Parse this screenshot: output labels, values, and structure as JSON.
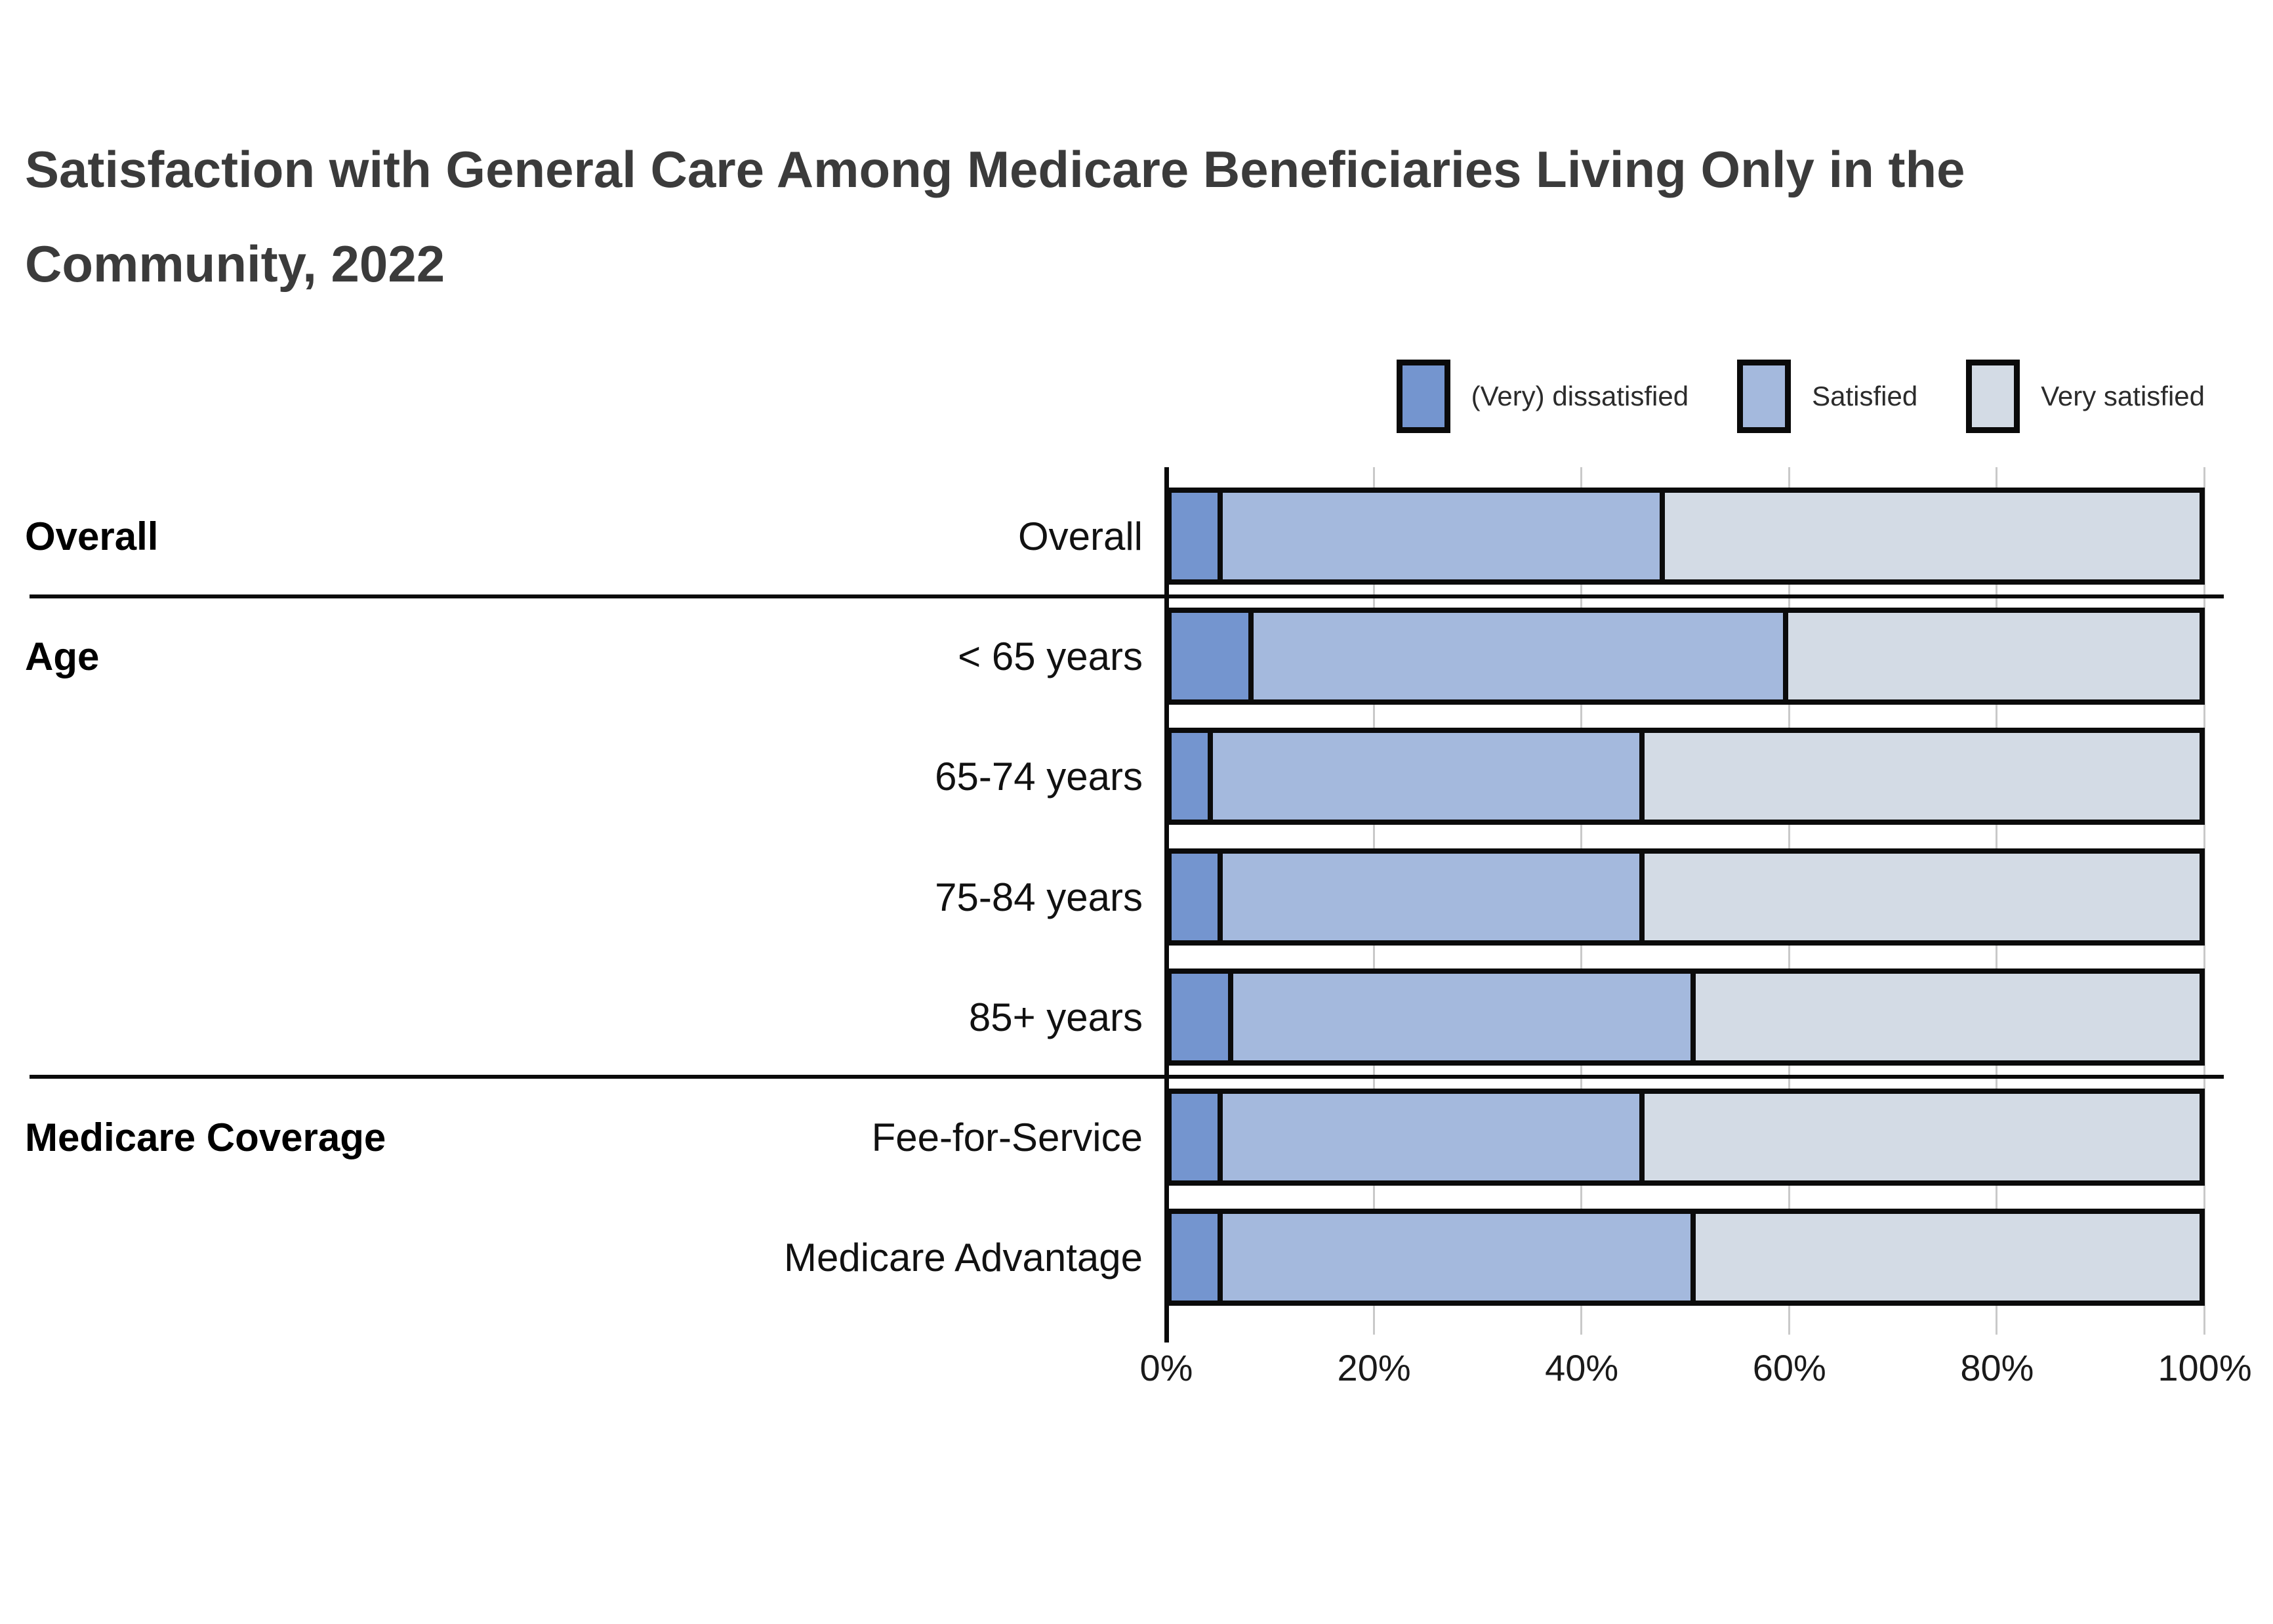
{
  "title": {
    "line1": "Satisfaction with General Care Among Medicare Beneficiaries Living Only in the",
    "line2": "Community, 2022"
  },
  "chart_data": {
    "type": "bar",
    "subtype": "horizontal-stacked",
    "title": "Satisfaction with General Care Among Medicare Beneficiaries Living Only in the Community, 2022",
    "xlabel": "",
    "ylabel": "",
    "xlim": [
      0,
      100
    ],
    "x_ticks": [
      "0%",
      "20%",
      "40%",
      "60%",
      "80%",
      "100%"
    ],
    "x_tick_values": [
      0,
      20,
      40,
      60,
      80,
      100
    ],
    "grid": "vertical-light-gray",
    "legend_position": "top-right",
    "legend": [
      {
        "label": "(Very) dissatisfied",
        "color": "#7495cf"
      },
      {
        "label": "Satisfied",
        "color": "#a4b9dd"
      },
      {
        "label": "Very satisfied",
        "color": "#d3dbe5"
      }
    ],
    "series_names": [
      "(Very) dissatisfied",
      "Satisfied",
      "Very satisfied"
    ],
    "rows": [
      {
        "label": "Overall",
        "values": [
          5,
          43,
          52
        ]
      },
      {
        "label": "< 65 years",
        "values": [
          8,
          52,
          40
        ]
      },
      {
        "label": "65-74 years",
        "values": [
          4,
          42,
          54
        ]
      },
      {
        "label": "75-84 years",
        "values": [
          5,
          41,
          54
        ]
      },
      {
        "label": "85+ years",
        "values": [
          6,
          45,
          49
        ]
      },
      {
        "label": "Fee-for-Service",
        "values": [
          5,
          41,
          54
        ]
      },
      {
        "label": "Medicare Advantage",
        "values": [
          5,
          46,
          49
        ]
      }
    ],
    "group_labels": [
      {
        "text": "Overall",
        "row": 0
      },
      {
        "text": "Age",
        "row": 1
      },
      {
        "text": "Medicare Coverage",
        "row": 5
      }
    ],
    "dividers_after_rows": [
      0,
      4
    ],
    "colors": {
      "bar_border": "#0b0b0b",
      "axis": "#0a0a0a",
      "gridline": "#c9c9c9",
      "title_text": "#3b3b3b",
      "label_text": "#111111"
    }
  }
}
